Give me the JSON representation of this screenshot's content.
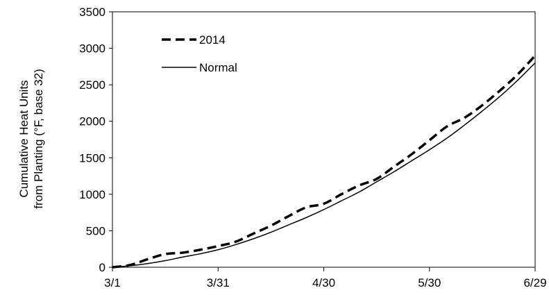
{
  "chart_data": {
    "type": "line",
    "title": "",
    "xlabel": "",
    "ylabel": [
      "Cumulative Heat Units",
      "from Planting (°F, base 32)"
    ],
    "xlim": [
      "3/1",
      "6/29"
    ],
    "ylim": [
      0,
      3500
    ],
    "x_ticks": [
      "3/1",
      "3/31",
      "4/30",
      "5/30",
      "6/29"
    ],
    "y_ticks": [
      "0",
      "500",
      "1000",
      "1500",
      "2000",
      "2500",
      "3000",
      "3500"
    ],
    "grid": false,
    "legend": "top-left",
    "series": [
      {
        "name": "2014",
        "style": "dashed",
        "color": "#000000",
        "x": [
          "3/1",
          "3/6",
          "3/11",
          "3/16",
          "3/21",
          "3/26",
          "3/31",
          "4/5",
          "4/10",
          "4/15",
          "4/20",
          "4/25",
          "4/30",
          "5/5",
          "5/10",
          "5/15",
          "5/20",
          "5/25",
          "5/30",
          "6/4",
          "6/9",
          "6/14",
          "6/19",
          "6/24",
          "6/29"
        ],
        "y": [
          0,
          30,
          110,
          180,
          200,
          240,
          290,
          350,
          460,
          570,
          700,
          820,
          870,
          1000,
          1120,
          1210,
          1380,
          1550,
          1740,
          1930,
          2050,
          2220,
          2420,
          2640,
          2900
        ]
      },
      {
        "name": "Normal",
        "style": "solid",
        "color": "#000000",
        "x": [
          "3/1",
          "3/6",
          "3/11",
          "3/16",
          "3/21",
          "3/26",
          "3/31",
          "4/5",
          "4/10",
          "4/15",
          "4/20",
          "4/25",
          "4/30",
          "5/5",
          "5/10",
          "5/15",
          "5/20",
          "5/25",
          "5/30",
          "6/4",
          "6/9",
          "6/14",
          "6/19",
          "6/24",
          "6/29"
        ],
        "y": [
          0,
          20,
          50,
          90,
          140,
          185,
          240,
          310,
          390,
          480,
          580,
          680,
          790,
          910,
          1030,
          1170,
          1310,
          1460,
          1610,
          1770,
          1950,
          2140,
          2340,
          2560,
          2800
        ]
      }
    ]
  }
}
